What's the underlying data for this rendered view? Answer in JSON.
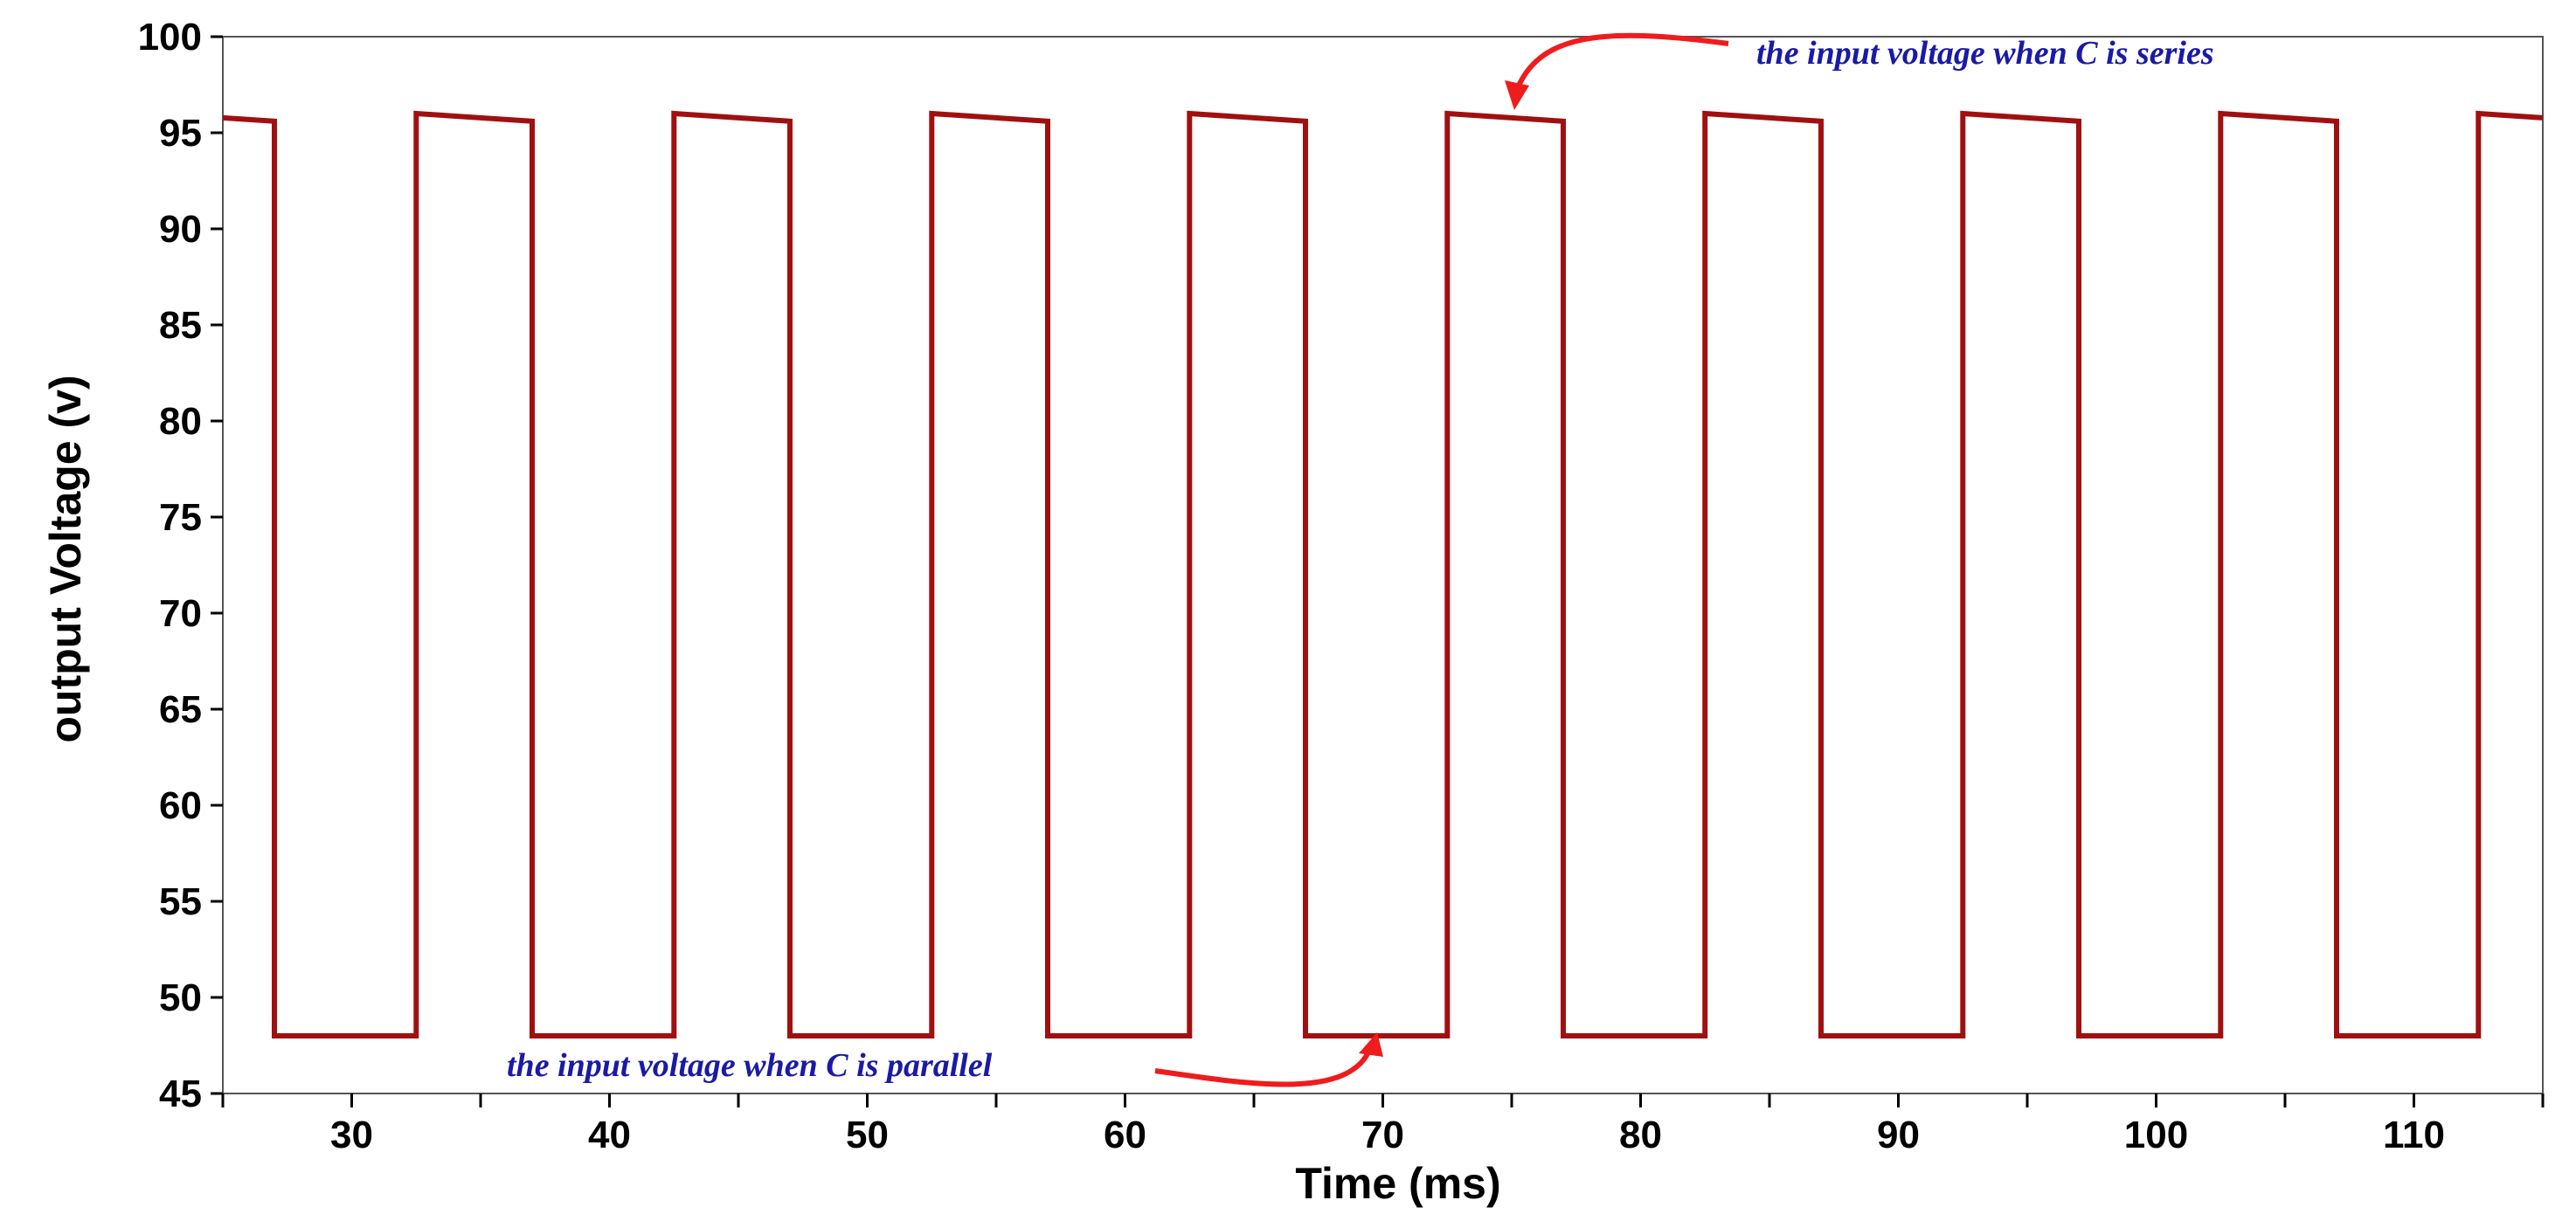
{
  "chart_data": {
    "type": "line",
    "xlabel": "Time (ms)",
    "ylabel": "output Voltage (v)",
    "xlim": [
      25,
      115
    ],
    "ylim": [
      45,
      100
    ],
    "xticks": [
      30,
      40,
      50,
      60,
      70,
      80,
      90,
      100,
      110
    ],
    "yticks": [
      45,
      50,
      55,
      60,
      65,
      70,
      75,
      80,
      85,
      90,
      95,
      100
    ],
    "grid": false,
    "series": [
      {
        "name": "output voltage",
        "color": "#a01010",
        "high_start": 96.0,
        "high_end": 95.6,
        "low": 48.0,
        "rise_times": [
          32.5,
          42.5,
          52.5,
          62.5,
          72.5,
          82.5,
          92.5,
          102.5,
          112.5
        ],
        "fall_times": [
          27,
          37,
          47,
          57,
          67,
          77,
          87,
          97,
          107
        ]
      }
    ],
    "annotations": [
      {
        "text": "the input voltage when C is series",
        "x": 75,
        "y": 96
      },
      {
        "text": "the input voltage when C is parallel",
        "x": 70,
        "y": 48
      }
    ]
  },
  "colors": {
    "annotation_text": "#1a1aa6",
    "arrow": "#ee1c1c"
  }
}
